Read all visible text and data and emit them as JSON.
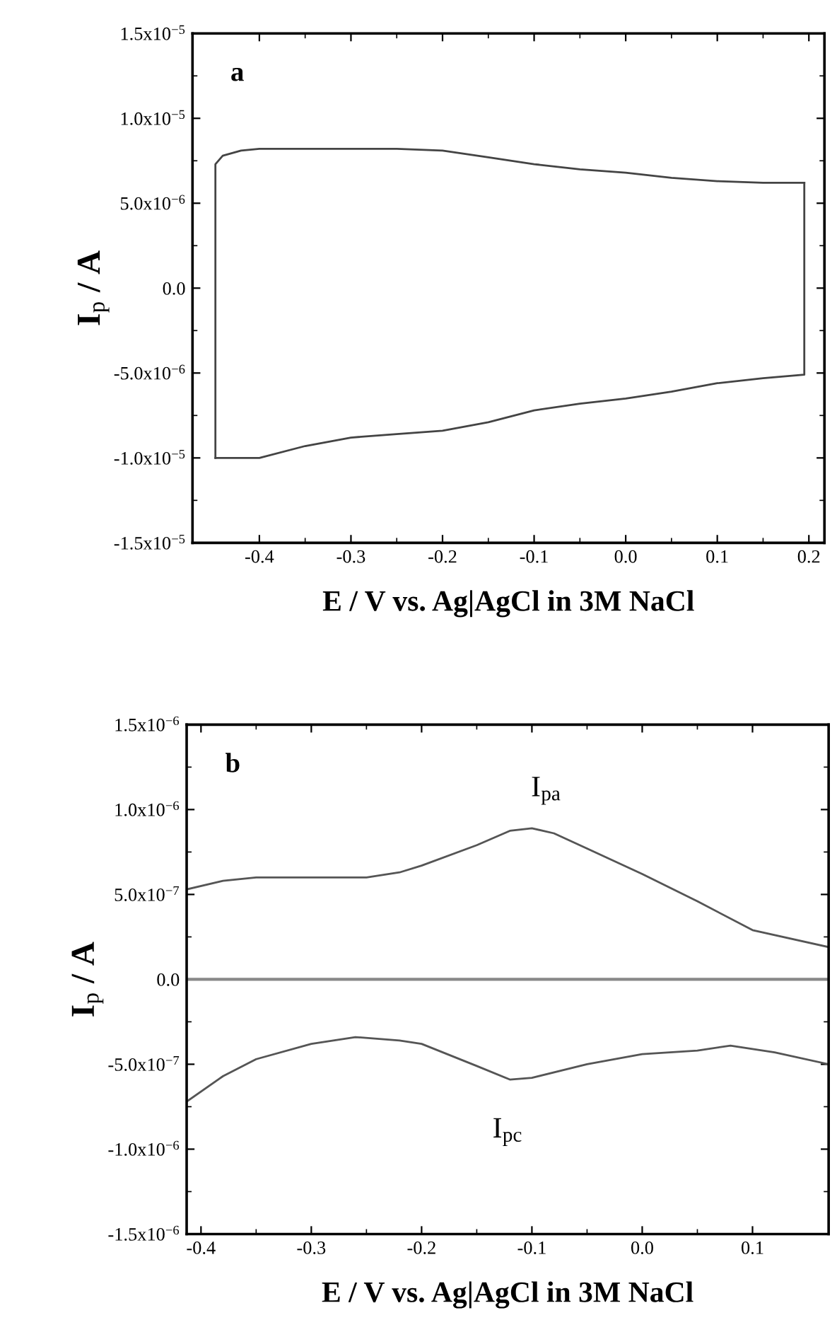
{
  "chart_data": [
    {
      "type": "line",
      "xlabel": "E / V vs. Ag|AgCl in 3M NaCl",
      "ylabel": "I$_{p}$ / A",
      "annotations": [
        "a"
      ],
      "xlim": [
        -0.473,
        0.217
      ],
      "ylim": [
        -1.5e-05,
        1.5e-05
      ],
      "xticks": [
        {
          "value": -0.4,
          "label": "-0.4"
        },
        {
          "value": -0.3,
          "label": "-0.3"
        },
        {
          "value": -0.2,
          "label": "-0.2"
        },
        {
          "value": -0.1,
          "label": "-0.1"
        },
        {
          "value": 0,
          "label": "0.0"
        },
        {
          "value": 0.1,
          "label": "0.1"
        },
        {
          "value": 0.2,
          "label": "0.2"
        }
      ],
      "yticks": [
        {
          "value": -1.5e-05,
          "label": "-1.5x10$^{−5}$"
        },
        {
          "value": -1e-05,
          "label": "-1.0x10$^{−5}$"
        },
        {
          "value": -5e-06,
          "label": "-5.0x10$^{−6}$"
        },
        {
          "value": 0,
          "label": "0.0"
        },
        {
          "value": 5e-06,
          "label": "5.0x10$^{−6}$"
        },
        {
          "value": 1e-05,
          "label": "1.0x10$^{−5}$"
        },
        {
          "value": 1.5e-05,
          "label": "1.5x10$^{−5}$"
        }
      ],
      "grid": false,
      "marker": "none",
      "line_style": "solid",
      "series": [
        {
          "color": "#444444",
          "x": [
            -0.448,
            -0.448,
            -0.44,
            -0.42,
            -0.4,
            -0.35,
            -0.3,
            -0.25,
            -0.2,
            -0.15,
            -0.1,
            -0.05,
            0.0,
            0.05,
            0.1,
            0.15,
            0.195
          ],
          "values": [
            -1e-05,
            7.3e-06,
            7.8e-06,
            8.1e-06,
            8.2e-06,
            8.2e-06,
            8.2e-06,
            8.2e-06,
            8.1e-06,
            7.7e-06,
            7.3e-06,
            7e-06,
            6.8e-06,
            6.5e-06,
            6.3e-06,
            6.2e-06,
            6.2e-06
          ]
        },
        {
          "color": "#444444",
          "x": [
            0.195,
            0.195,
            0.15,
            0.1,
            0.05,
            0.0,
            -0.05,
            -0.1,
            -0.15,
            -0.2,
            -0.25,
            -0.3,
            -0.35,
            -0.4,
            -0.448
          ],
          "values": [
            6.2e-06,
            -5.1e-06,
            -5.3e-06,
            -5.6e-06,
            -6.1e-06,
            -6.5e-06,
            -6.8e-06,
            -7.2e-06,
            -7.9e-06,
            -8.4e-06,
            -8.6e-06,
            -8.8e-06,
            -9.3e-06,
            -1e-05,
            -1e-05
          ]
        }
      ]
    },
    {
      "type": "line",
      "xlabel": "E / V vs. Ag|AgCl in 3M NaCl",
      "ylabel": "I$_{p}$ / A",
      "annotations": [
        "b",
        "I$_{pa}$",
        "I$_{pc}$"
      ],
      "xlim": [
        -0.413,
        0.169
      ],
      "ylim": [
        -1.5e-06,
        1.5e-06
      ],
      "xticks": [
        {
          "value": -0.4,
          "label": "-0.4"
        },
        {
          "value": -0.3,
          "label": "-0.3"
        },
        {
          "value": -0.2,
          "label": "-0.2"
        },
        {
          "value": -0.1,
          "label": "-0.1"
        },
        {
          "value": 0,
          "label": "0.0"
        },
        {
          "value": 0.1,
          "label": "0.1"
        }
      ],
      "yticks": [
        {
          "value": -1.5e-06,
          "label": "-1.5x10$^{−6}$"
        },
        {
          "value": -1e-06,
          "label": "-1.0x10$^{−6}$"
        },
        {
          "value": -5e-07,
          "label": "-5.0x10$^{−7}$"
        },
        {
          "value": 0,
          "label": "0.0"
        },
        {
          "value": 5e-07,
          "label": "5.0x10$^{−7}$"
        },
        {
          "value": 1e-06,
          "label": "1.0x10$^{−6}$"
        },
        {
          "value": 1.5e-06,
          "label": "1.5x10$^{−6}$"
        }
      ],
      "ref_lines": [
        {
          "axis": "y",
          "value": 0,
          "color": "#888888",
          "line_style": "solid"
        }
      ],
      "grid": false,
      "marker": "none",
      "line_style": "solid",
      "series": [
        {
          "color": "#555555",
          "x": [
            -0.413,
            -0.38,
            -0.35,
            -0.3,
            -0.25,
            -0.22,
            -0.2,
            -0.15,
            -0.12,
            -0.1,
            -0.08,
            -0.05,
            0.0,
            0.05,
            0.1,
            0.169
          ],
          "values": [
            5.3e-07,
            5.8e-07,
            6e-07,
            6e-07,
            6e-07,
            6.3e-07,
            6.7e-07,
            7.9e-07,
            8.75e-07,
            8.9e-07,
            8.6e-07,
            7.7e-07,
            6.2e-07,
            4.6e-07,
            2.9e-07,
            1.9e-07
          ]
        },
        {
          "color": "#555555",
          "x": [
            -0.413,
            -0.38,
            -0.35,
            -0.3,
            -0.26,
            -0.22,
            -0.2,
            -0.15,
            -0.12,
            -0.1,
            -0.05,
            0.0,
            0.05,
            0.08,
            0.12,
            0.169
          ],
          "values": [
            -7.2e-07,
            -5.7e-07,
            -4.7e-07,
            -3.8e-07,
            -3.4e-07,
            -3.6e-07,
            -3.8e-07,
            -5.1e-07,
            -5.9e-07,
            -5.8e-07,
            -5e-07,
            -4.4e-07,
            -4.2e-07,
            -3.9e-07,
            -4.3e-07,
            -5e-07
          ]
        }
      ]
    }
  ]
}
